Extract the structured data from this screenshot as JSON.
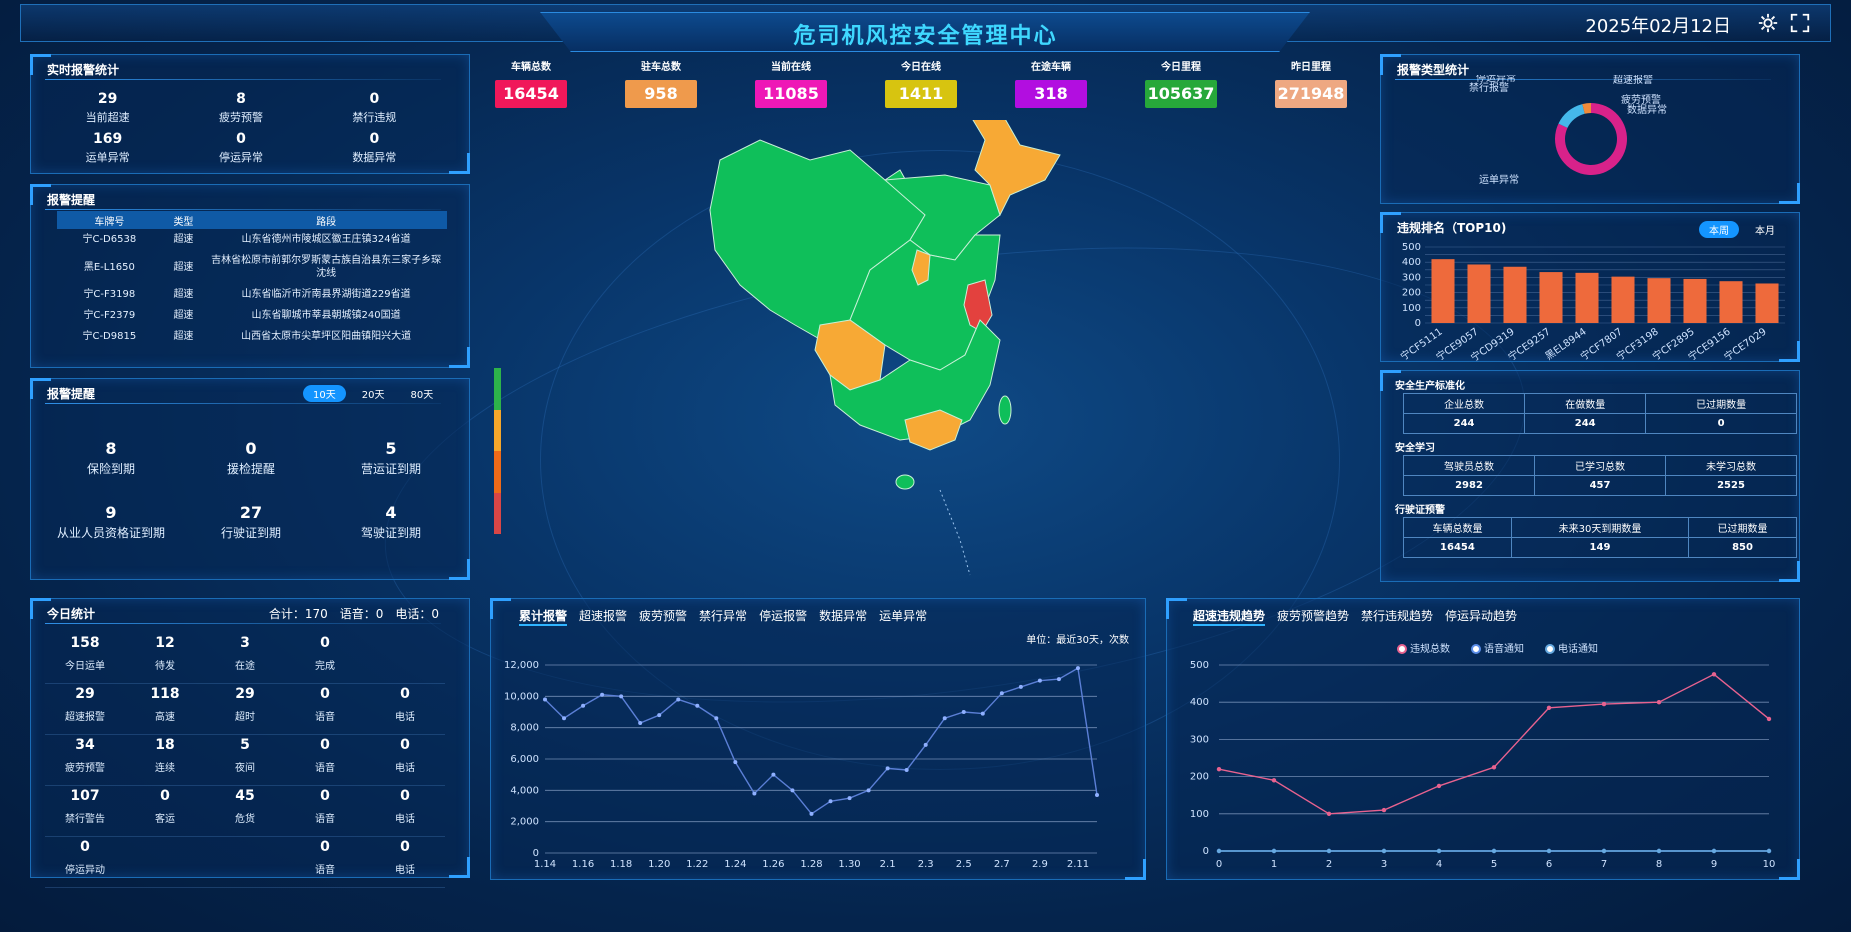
{
  "header": {
    "title": "危司机风控安全管理中心",
    "date": "2025年02月12日"
  },
  "realtime": {
    "title": "实时报警统计",
    "items": [
      {
        "value": "29",
        "label": "当前超速"
      },
      {
        "value": "8",
        "label": "疲劳预警"
      },
      {
        "value": "0",
        "label": "禁行违规"
      },
      {
        "value": "169",
        "label": "运单异常"
      },
      {
        "value": "0",
        "label": "停运异常"
      },
      {
        "value": "0",
        "label": "数据异常"
      }
    ]
  },
  "alarm_remind": {
    "title": "报警提醒",
    "headers": [
      "车牌号",
      "类型",
      "路段"
    ],
    "rows": [
      [
        "宁C-D6538",
        "超速",
        "山东省德州市陵城区徽王庄镇324省道"
      ],
      [
        "黑E-L1650",
        "超速",
        "吉林省松原市前郭尔罗斯蒙古族自治县东三家子乡琛沈线"
      ],
      [
        "宁C-F3198",
        "超速",
        "山东省临沂市沂南县界湖街道229省道"
      ],
      [
        "宁C-F2379",
        "超速",
        "山东省聊城市莘县朝城镇240国道"
      ],
      [
        "宁C-D9815",
        "超速",
        "山西省太原市尖草坪区阳曲镇阳兴大道"
      ]
    ]
  },
  "expire_remind": {
    "title": "报警提醒",
    "tabs": [
      "10天",
      "20天",
      "80天"
    ],
    "items": [
      {
        "value": "8",
        "label": "保险到期"
      },
      {
        "value": "0",
        "label": "援检提醒"
      },
      {
        "value": "5",
        "label": "营运证到期"
      },
      {
        "value": "9",
        "label": "从业人员资格证到期"
      },
      {
        "value": "27",
        "label": "行驶证到期"
      },
      {
        "value": "4",
        "label": "驾驶证到期"
      }
    ]
  },
  "today": {
    "title": "今日统计",
    "summary": "合计：170　语音：0　电话：0",
    "rows": [
      [
        {
          "v": "158",
          "l": "今日运单"
        },
        {
          "v": "12",
          "l": "待发"
        },
        {
          "v": "3",
          "l": "在途"
        },
        {
          "v": "0",
          "l": "完成"
        },
        {
          "v": "",
          "l": ""
        }
      ],
      [
        {
          "v": "29",
          "l": "超速报警"
        },
        {
          "v": "118",
          "l": "高速"
        },
        {
          "v": "29",
          "l": "超时"
        },
        {
          "v": "0",
          "l": "语音"
        },
        {
          "v": "0",
          "l": "电话"
        }
      ],
      [
        {
          "v": "34",
          "l": "疲劳预警"
        },
        {
          "v": "18",
          "l": "连续"
        },
        {
          "v": "5",
          "l": "夜间"
        },
        {
          "v": "0",
          "l": "语音"
        },
        {
          "v": "0",
          "l": "电话"
        }
      ],
      [
        {
          "v": "107",
          "l": "禁行警告"
        },
        {
          "v": "0",
          "l": "客运"
        },
        {
          "v": "45",
          "l": "危货"
        },
        {
          "v": "0",
          "l": "语音"
        },
        {
          "v": "0",
          "l": "电话"
        }
      ],
      [
        {
          "v": "0",
          "l": "停运异动"
        },
        {
          "v": "",
          "l": ""
        },
        {
          "v": "",
          "l": ""
        },
        {
          "v": "0",
          "l": "语音"
        },
        {
          "v": "0",
          "l": "电话"
        }
      ]
    ]
  },
  "kpis": [
    {
      "label": "车辆总数",
      "value": "16454",
      "color": "#f0185a"
    },
    {
      "label": "驻车总数",
      "value": "958",
      "color": "#ef9a4c"
    },
    {
      "label": "当前在线",
      "value": "11085",
      "color": "#ee18b6"
    },
    {
      "label": "今日在线",
      "value": "1411",
      "color": "#d7c410"
    },
    {
      "label": "在途车辆",
      "value": "318",
      "color": "#b20ee0"
    },
    {
      "label": "今日里程",
      "value": "105637",
      "color": "#27a83a"
    },
    {
      "label": "昨日里程",
      "value": "271948",
      "color": "#eea882"
    }
  ],
  "legend_colors": [
    "#2db34a",
    "#f5a72b",
    "#ef6a18",
    "#d94646"
  ],
  "map_colors": {
    "green": "#0fbf5a",
    "orange": "#f7a935",
    "red": "#e3413e"
  },
  "alarm_type": {
    "title": "报警类型统计",
    "labels": [
      "停运异常",
      "禁行报警",
      "超速报警",
      "疲劳预警",
      "数据异常",
      "运单异常"
    ],
    "chart_data": {
      "type": "pie",
      "labels": [
        "运单异常",
        "超速报警",
        "疲劳预警",
        "停运异常",
        "禁行报警",
        "数据异常"
      ],
      "values": [
        169,
        29,
        8,
        0,
        0,
        0
      ],
      "colors": [
        "#d8228a",
        "#45b8ea",
        "#f08b3a",
        "#8bd",
        "#5ad",
        "#aaa"
      ]
    }
  },
  "ranking": {
    "title": "违规排名（TOP10)",
    "tabs": [
      "本周",
      "本月"
    ],
    "chart_data": {
      "type": "bar",
      "categories": [
        "宁CF5111",
        "宁CE9057",
        "宁CD9319",
        "宁CE9257",
        "黑EL8944",
        "宁CF7807",
        "宁CF3198",
        "宁CF2895",
        "宁CE9156",
        "宁CE7029"
      ],
      "values": [
        420,
        385,
        370,
        335,
        330,
        305,
        295,
        290,
        275,
        260
      ],
      "ylim": [
        0,
        500
      ],
      "yticks": [
        0,
        50,
        100,
        150,
        200,
        250,
        300,
        350,
        400,
        450,
        500
      ],
      "color": "#ee6a3c"
    }
  },
  "safety": {
    "sections": [
      {
        "title": "安全生产标准化",
        "headers": [
          "企业总数",
          "在做数量",
          "已过期数量"
        ],
        "values": [
          "244",
          "244",
          "0"
        ]
      },
      {
        "title": "安全学习",
        "headers": [
          "驾驶员总数",
          "已学习总数",
          "未学习总数"
        ],
        "values": [
          "2982",
          "457",
          "2525"
        ]
      },
      {
        "title": "行驶证预警",
        "headers": [
          "车辆总数量",
          "未来30天到期数量",
          "已过期数量"
        ],
        "values": [
          "16454",
          "149",
          "850"
        ]
      }
    ]
  },
  "cum_chart": {
    "tabs": [
      "累计报警",
      "超速报警",
      "疲劳预警",
      "禁行异常",
      "停运报警",
      "数据异常",
      "运单异常"
    ],
    "unit": "单位：最近30天，次数",
    "chart_data": {
      "type": "line",
      "x": [
        "1.14",
        "1.15",
        "1.16",
        "1.17",
        "1.18",
        "1.19",
        "1.20",
        "1.21",
        "1.22",
        "1.23",
        "1.24",
        "1.25",
        "1.26",
        "1.27",
        "1.28",
        "1.29",
        "1.30",
        "1.31",
        "2.1",
        "2.2",
        "2.3",
        "2.4",
        "2.5",
        "2.6",
        "2.7",
        "2.8",
        "2.9",
        "2.10",
        "2.11",
        "2.12"
      ],
      "xticks": [
        "1.14",
        "1.16",
        "1.18",
        "1.20",
        "1.22",
        "1.24",
        "1.26",
        "1.28",
        "1.30",
        "2.1",
        "2.3",
        "2.5",
        "2.7",
        "2.9",
        "2.11"
      ],
      "values": [
        9800,
        8600,
        9400,
        10100,
        10000,
        8300,
        8800,
        9800,
        9400,
        8600,
        5800,
        3800,
        5000,
        4000,
        2500,
        3300,
        3500,
        4000,
        5400,
        5300,
        6900,
        8600,
        9000,
        8900,
        10200,
        10600,
        11000,
        11100,
        11800,
        3700
      ],
      "yticks": [
        "0",
        "2,000",
        "4,000",
        "6,000",
        "8,000",
        "10,000",
        "12,000"
      ],
      "ylim": [
        0,
        12000
      ],
      "color": "#5b7fd6"
    }
  },
  "trend_chart": {
    "tabs": [
      "超速违规趋势",
      "疲劳预警趋势",
      "禁行违规趋势",
      "停运异动趋势"
    ],
    "chart_data": {
      "type": "line",
      "x": [
        0,
        1,
        2,
        3,
        4,
        5,
        6,
        7,
        8,
        9,
        10
      ],
      "ylim": [
        0,
        500
      ],
      "yticks": [
        0,
        100,
        200,
        300,
        400,
        500
      ],
      "series": [
        {
          "name": "违规总数",
          "values": [
            220,
            190,
            100,
            110,
            175,
            225,
            385,
            395,
            400,
            475,
            355
          ],
          "color": "#e8628f"
        },
        {
          "name": "语音通知",
          "values": [
            0,
            0,
            0,
            0,
            0,
            0,
            0,
            0,
            0,
            0,
            0
          ],
          "color": "#5b8de8"
        },
        {
          "name": "电话通知",
          "values": [
            0,
            0,
            0,
            0,
            0,
            0,
            0,
            0,
            0,
            0,
            0
          ],
          "color": "#66a9e0"
        }
      ]
    }
  }
}
